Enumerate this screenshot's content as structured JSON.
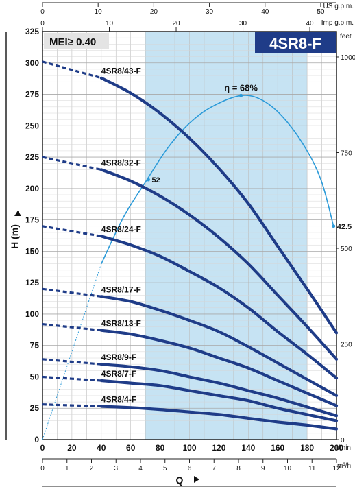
{
  "chart_data": {
    "type": "line",
    "title_badge": "4SR8-F",
    "mei_label": "MEI≥ 0.40",
    "xlabel": "Q",
    "ylabel": "H (m)",
    "x_unit_primary": "l/min",
    "x_unit_m3h": "m³/h",
    "x_unit_imp": "Imp g.p.m.",
    "x_unit_us": "US g.p.m.",
    "y_unit_feet": "feet",
    "xlim": [
      0,
      200
    ],
    "ylim": [
      0,
      325
    ],
    "x_ticks": [
      0,
      20,
      40,
      60,
      80,
      100,
      120,
      140,
      160,
      180,
      200
    ],
    "y_ticks": [
      0,
      25,
      50,
      75,
      100,
      125,
      150,
      175,
      200,
      225,
      250,
      275,
      300,
      325
    ],
    "m3h_ticks": [
      "0",
      "1",
      "2",
      "3",
      "4",
      "5",
      "6",
      "7",
      "8",
      "9",
      "10",
      "11",
      "12"
    ],
    "imp_ticks": [
      "0",
      "10",
      "20",
      "30",
      "40"
    ],
    "us_ticks": [
      "0",
      "10",
      "20",
      "30",
      "40",
      "50"
    ],
    "feet_ticks": [
      "0",
      "250",
      "500",
      "750",
      "1000"
    ],
    "recommended_range": [
      70,
      180
    ],
    "series": [
      {
        "name": "4SR8/43-F",
        "x": [
          0,
          40,
          60,
          80,
          100,
          120,
          140,
          160,
          180,
          200
        ],
        "y": [
          301,
          288,
          276,
          260,
          240,
          216,
          188,
          154,
          120,
          85
        ]
      },
      {
        "name": "4SR8/32-F",
        "x": [
          0,
          40,
          60,
          80,
          100,
          120,
          140,
          160,
          180,
          200
        ],
        "y": [
          225,
          215,
          206,
          194,
          179,
          161,
          140,
          115,
          90,
          64
        ]
      },
      {
        "name": "4SR8/24-F",
        "x": [
          0,
          40,
          60,
          80,
          100,
          120,
          140,
          160,
          180,
          200
        ],
        "y": [
          170,
          162,
          155,
          146,
          134,
          121,
          105,
          86,
          68,
          49
        ]
      },
      {
        "name": "4SR8/17-F",
        "x": [
          0,
          40,
          60,
          80,
          100,
          120,
          140,
          160,
          180,
          200
        ],
        "y": [
          120,
          114,
          110,
          103,
          95,
          86,
          74,
          61,
          48,
          35
        ]
      },
      {
        "name": "4SR8/13-F",
        "x": [
          0,
          40,
          60,
          80,
          100,
          120,
          140,
          160,
          180,
          200
        ],
        "y": [
          92,
          87,
          84,
          79,
          73,
          65,
          57,
          47,
          37,
          27
        ]
      },
      {
        "name": "4SR8/9-F",
        "x": [
          0,
          40,
          60,
          80,
          100,
          120,
          140,
          160,
          180,
          200
        ],
        "y": [
          64,
          60,
          58,
          55,
          50,
          45,
          39,
          33,
          26,
          19
        ]
      },
      {
        "name": "4SR8/7-F",
        "x": [
          0,
          40,
          60,
          80,
          100,
          120,
          140,
          160,
          180,
          200
        ],
        "y": [
          50,
          47,
          45,
          43,
          39,
          35,
          31,
          25,
          20,
          15
        ]
      },
      {
        "name": "4SR8/4-F",
        "x": [
          0,
          40,
          60,
          80,
          100,
          120,
          140,
          160,
          180,
          200
        ],
        "y": [
          28,
          26.5,
          25.5,
          24,
          22,
          20,
          17,
          14,
          11.5,
          8.5
        ]
      }
    ],
    "efficiency_curve": {
      "x": [
        40,
        55,
        70,
        85,
        100,
        115,
        135,
        150,
        165,
        180,
        190,
        198
      ],
      "y": [
        140,
        177,
        205,
        232,
        252,
        265,
        274,
        270,
        255,
        230,
        205,
        170
      ]
    },
    "efficiency_extrapolation": {
      "x": [
        0,
        40
      ],
      "y": [
        0,
        140
      ]
    },
    "annotations": [
      {
        "text": "η = 68%",
        "x": 135,
        "y": 274
      },
      {
        "text": "52",
        "x": 72,
        "y": 207
      },
      {
        "text": "42.5",
        "x": 198,
        "y": 170
      }
    ],
    "grid": true,
    "colors": {
      "curve": "#1f3c88",
      "efficiency": "#2b9ad8",
      "band": "#c6e3f3",
      "badge": "#1f3c88"
    }
  }
}
